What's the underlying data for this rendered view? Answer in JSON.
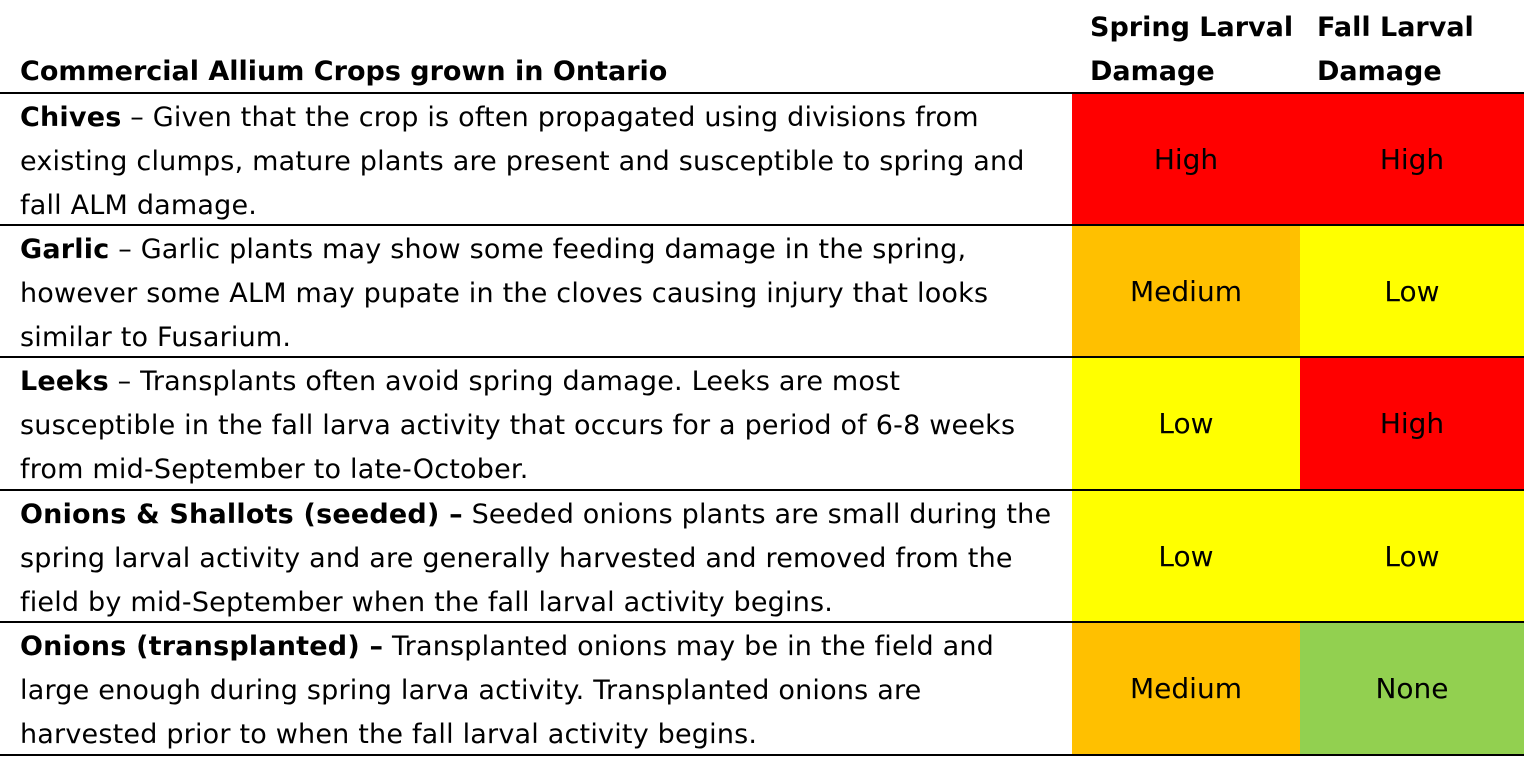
{
  "headers": {
    "crop": "Commercial Allium Crops grown in Ontario",
    "spring_line1": "Spring Larval",
    "spring_line2": "Damage",
    "fall_line1": "Fall Larval",
    "fall_line2": "Damage"
  },
  "colors": {
    "High": "#ff0000",
    "Medium": "#ffc000",
    "Low": "#ffff00",
    "None": "#92d050"
  },
  "rows": [
    {
      "name": "Chives",
      "separator": " – ",
      "description": "Given that the crop is often propagated using divisions from existing clumps, mature plants are present and susceptible to spring and fall ALM damage.",
      "spring": "High",
      "fall": "High"
    },
    {
      "name": "Garlic",
      "separator": " – ",
      "description": "Garlic plants may show some feeding damage in the spring, however some ALM may pupate in the cloves causing injury that looks similar to Fusarium.",
      "spring": "Medium",
      "fall": "Low"
    },
    {
      "name": "Leeks",
      "separator": " – ",
      "description": "Transplants often avoid spring damage. Leeks are most susceptible in the fall larva activity that occurs for a period of 6-8 weeks from mid-September to late-October.",
      "spring": "Low",
      "fall": "High"
    },
    {
      "name": "Onions & Shallots (seeded) –",
      "separator": " ",
      "description": "Seeded onions plants are small during the spring larval activity and are generally harvested and removed from the field by mid-September when the fall larval activity begins.",
      "spring": "Low",
      "fall": "Low"
    },
    {
      "name": "Onions (transplanted) –",
      "separator": " ",
      "description": "Transplanted onions may be in the field and large enough during spring larva activity. Transplanted onions are harvested prior to when the fall larval activity begins.",
      "spring": "Medium",
      "fall": "None"
    }
  ]
}
